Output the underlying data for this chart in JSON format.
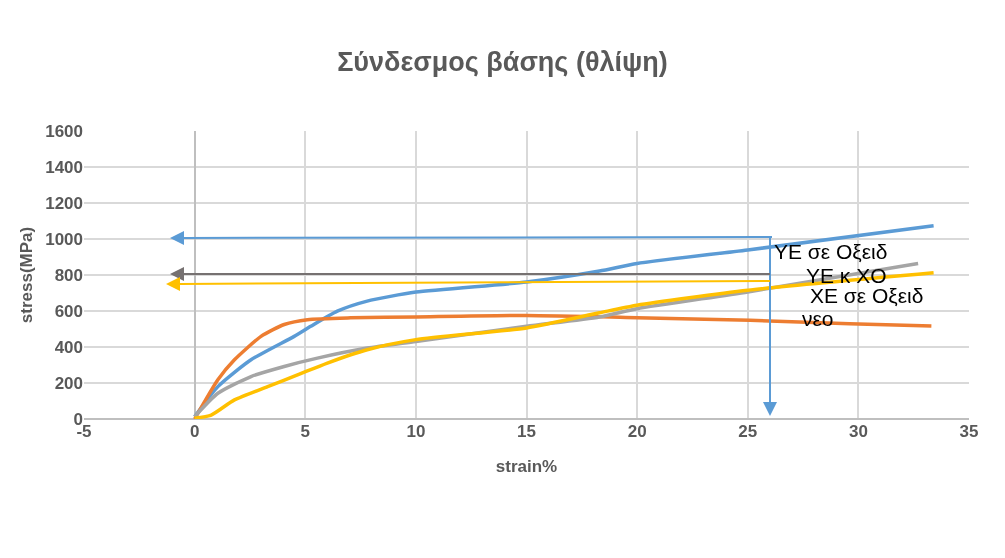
{
  "chart_data": {
    "type": "line",
    "title": "Σύνδεσμος βάσης (θλίψη)",
    "xlabel": "strain%",
    "ylabel": "stress(MPa)",
    "xlim": [
      -5,
      35
    ],
    "xticks": [
      -5,
      0,
      5,
      10,
      15,
      20,
      25,
      30,
      35
    ],
    "ylim": [
      0,
      1600
    ],
    "yticks": [
      0,
      200,
      400,
      600,
      800,
      1000,
      1200,
      1400,
      1600
    ],
    "grid": true,
    "legend": false,
    "marker": "none",
    "line_style": "solid",
    "series": [
      {
        "name": "ΥΕ σε Οξειδ",
        "color": "#5b9bd5",
        "x": [
          0,
          1.05,
          2.55,
          4.5,
          5.25,
          6.45,
          7.8,
          10,
          15,
          18.3,
          20,
          25,
          33.4
        ],
        "values": [
          13,
          180,
          329,
          459,
          515,
          599,
          655,
          705,
          761,
          822,
          864,
          939,
          1073
        ]
      },
      {
        "name": "νεο",
        "color": "#ed7d31",
        "x": [
          0,
          1.05,
          1.8,
          3,
          4.05,
          5.1,
          7.05,
          10,
          15,
          20,
          25.1,
          29.6,
          33.3
        ],
        "values": [
          0,
          218,
          329,
          459,
          525,
          552,
          562,
          567,
          575,
          563,
          548,
          529,
          516
        ]
      },
      {
        "name": "ΥΕ κ ΧΟ",
        "color": "#a5a5a5",
        "x": [
          0,
          1.05,
          2.55,
          4.05,
          5.55,
          7.8,
          10,
          15,
          18.3,
          20,
          25,
          32.7
        ],
        "values": [
          13,
          143,
          236,
          292,
          338,
          394,
          431,
          515,
          567,
          613,
          706,
          864
        ]
      },
      {
        "name": "ΧΕ σε Οξειδ",
        "color": "#ffc000",
        "x": [
          0,
          0.75,
          1.8,
          3.3,
          4.65,
          6,
          7.8,
          10,
          15,
          18.3,
          20,
          25,
          33.4
        ],
        "values": [
          4,
          22,
          106,
          180,
          245,
          311,
          385,
          441,
          506,
          590,
          632,
          715,
          812
        ]
      }
    ]
  }
}
